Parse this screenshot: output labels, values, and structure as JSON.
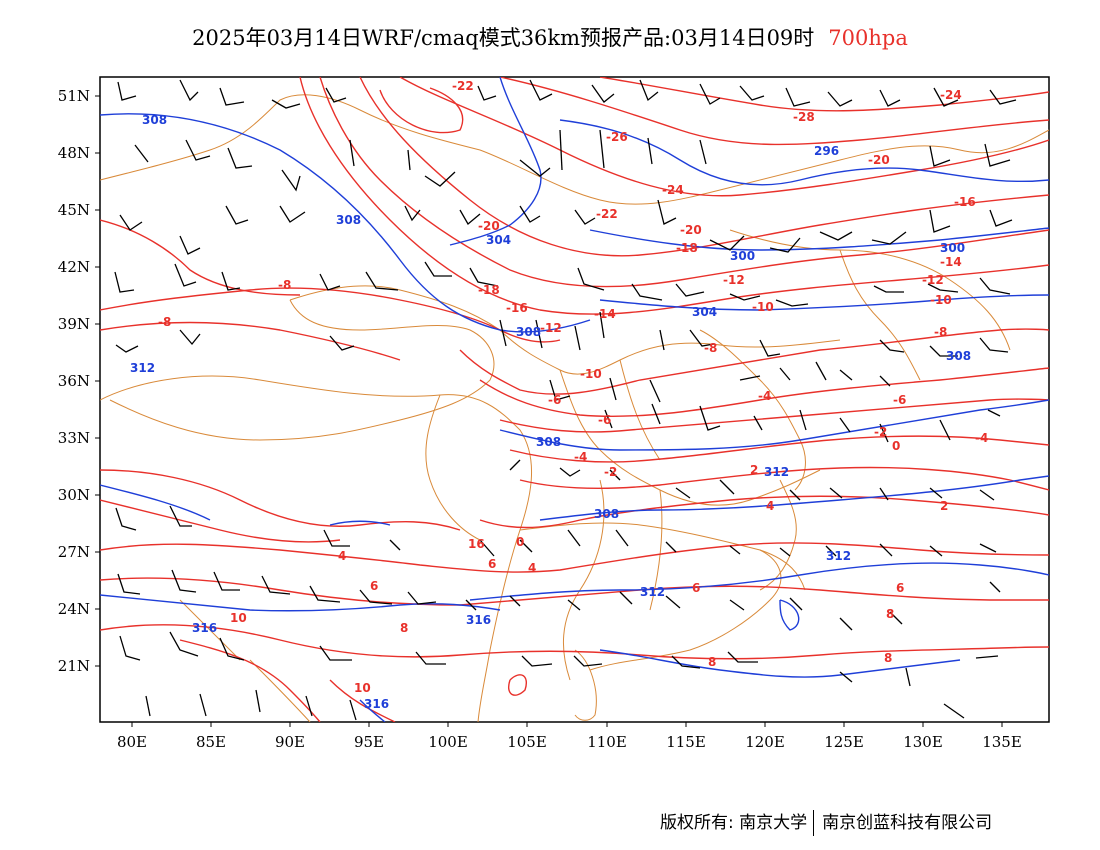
{
  "title": {
    "main": "2025年03月14日WRF/cmaq模式36km预报产品:03月14日09时",
    "level": "700hpa"
  },
  "colors": {
    "temperature": "#e8312b",
    "height": "#1f3fd8",
    "boundary": "#d98a3a",
    "barb": "#000000",
    "level": "#e8312b"
  },
  "axes": {
    "lon_labels": [
      "80E",
      "85E",
      "90E",
      "95E",
      "100E",
      "105E",
      "110E",
      "115E",
      "120E",
      "125E",
      "130E",
      "135E"
    ],
    "lat_labels": [
      "51N",
      "48N",
      "45N",
      "42N",
      "39N",
      "36N",
      "33N",
      "30N",
      "27N",
      "24N",
      "21N"
    ]
  },
  "temp_labels": [
    "-22",
    "-26",
    "-28",
    "-24",
    "-24",
    "-20",
    "-20",
    "-20",
    "-22",
    "-18",
    "-18",
    "-16",
    "-16",
    "-14",
    "-14",
    "-12",
    "-12",
    "-12",
    "-10",
    "-10",
    "-10",
    "-8",
    "-8",
    "-8",
    "-8",
    "-6",
    "-6",
    "-6",
    "-4",
    "-4",
    "-4",
    "-2",
    "-2",
    "0",
    "0",
    "2",
    "2",
    "4",
    "4",
    "4",
    "6",
    "6",
    "6",
    "8",
    "8",
    "8",
    "8",
    "10",
    "10",
    "16",
    "6"
  ],
  "height_labels": [
    "308",
    "308",
    "304",
    "304",
    "300",
    "300",
    "296",
    "308",
    "308",
    "308",
    "308",
    "312",
    "312",
    "312",
    "312",
    "316",
    "316",
    "316"
  ],
  "footer": {
    "left": "版权所有: 南京大学",
    "right": "南京创蓝科技有限公司"
  }
}
